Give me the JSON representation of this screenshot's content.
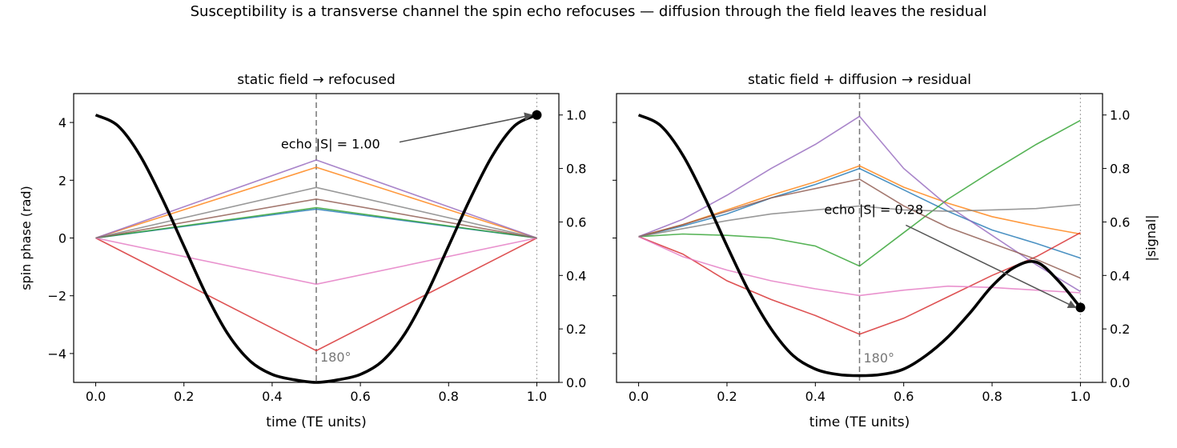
{
  "figure": {
    "suptitle": "Susceptibility is a transverse channel the spin echo refocuses — diffusion through the field leaves the residual"
  },
  "chart_data": [
    {
      "type": "line",
      "title": "static field  →  refocused",
      "xlabel": "time  (TE units)",
      "ylabel": "spin phase (rad)",
      "y2label": "",
      "xlim": [
        -0.05,
        1.05
      ],
      "ylim": [
        -5.0,
        5.0
      ],
      "y2lim": [
        0.0,
        1.08
      ],
      "xticks": [
        "0.0",
        "0.2",
        "0.4",
        "0.6",
        "0.8",
        "1.0"
      ],
      "yticks": [
        "−4",
        "−2",
        "0",
        "2",
        "4"
      ],
      "y2ticks": [
        "0.0",
        "0.2",
        "0.4",
        "0.6",
        "0.8",
        "1.0"
      ],
      "grid": false,
      "refocus_line": {
        "x": 0.5,
        "label": "180°"
      },
      "echo_line": {
        "x": 1.0
      },
      "phase_series": [
        {
          "color": "#1f77b4",
          "x": [
            0,
            0.5,
            1.0
          ],
          "y": [
            0,
            1.0,
            0
          ]
        },
        {
          "color": "#ff7f0e",
          "x": [
            0,
            0.5,
            1.0
          ],
          "y": [
            0,
            2.45,
            0
          ]
        },
        {
          "color": "#2ca02c",
          "x": [
            0,
            0.5,
            1.0
          ],
          "y": [
            0,
            1.05,
            0
          ]
        },
        {
          "color": "#d62728",
          "x": [
            0,
            0.5,
            1.0
          ],
          "y": [
            0,
            -3.9,
            0
          ]
        },
        {
          "color": "#9467bd",
          "x": [
            0,
            0.5,
            1.0
          ],
          "y": [
            0,
            2.7,
            0
          ]
        },
        {
          "color": "#8c564b",
          "x": [
            0,
            0.5,
            1.0
          ],
          "y": [
            0,
            1.35,
            0
          ]
        },
        {
          "color": "#e377c2",
          "x": [
            0,
            0.5,
            1.0
          ],
          "y": [
            0,
            -1.6,
            0
          ]
        },
        {
          "color": "#7f7f7f",
          "x": [
            0,
            0.5,
            1.0
          ],
          "y": [
            0,
            1.75,
            0
          ]
        }
      ],
      "signal": {
        "color": "#000000",
        "x": [
          0,
          0.05,
          0.1,
          0.15,
          0.2,
          0.25,
          0.3,
          0.35,
          0.4,
          0.45,
          0.5,
          0.55,
          0.6,
          0.65,
          0.7,
          0.75,
          0.8,
          0.85,
          0.9,
          0.95,
          1.0
        ],
        "y": [
          1.0,
          0.96,
          0.85,
          0.69,
          0.51,
          0.33,
          0.18,
          0.08,
          0.03,
          0.01,
          0.0,
          0.01,
          0.03,
          0.08,
          0.18,
          0.33,
          0.51,
          0.69,
          0.85,
          0.96,
          1.0
        ]
      },
      "echo_marker": {
        "x": 1.0,
        "y": 1.0
      },
      "annotation": {
        "text": "echo |S| = 1.00",
        "text_x": 0.42,
        "text_y": 3.1
      }
    },
    {
      "type": "line",
      "title": "static field + diffusion  →  residual",
      "xlabel": "time  (TE units)",
      "ylabel": "",
      "y2label": "|signal|",
      "xlim": [
        -0.05,
        1.05
      ],
      "ylim": [
        0.0,
        1.08
      ],
      "y2lim": [
        0.0,
        1.08
      ],
      "xticks": [
        "0.0",
        "0.2",
        "0.4",
        "0.6",
        "0.8",
        "1.0"
      ],
      "yticks": [],
      "y2ticks": [
        "0.0",
        "0.2",
        "0.4",
        "0.6",
        "0.8",
        "1.0"
      ],
      "grid": false,
      "refocus_line": {
        "x": 0.5,
        "label": "180°"
      },
      "echo_line": {
        "x": 1.0
      },
      "phase_series": [
        {
          "color": "#1f77b4",
          "x": [
            0,
            0.1,
            0.2,
            0.3,
            0.4,
            0.5,
            0.6,
            0.7,
            0.8,
            0.9,
            1.0
          ],
          "y": [
            0.545,
            0.585,
            0.63,
            0.69,
            0.74,
            0.8,
            0.72,
            0.64,
            0.57,
            0.52,
            0.465
          ]
        },
        {
          "color": "#ff7f0e",
          "x": [
            0,
            0.1,
            0.2,
            0.3,
            0.4,
            0.5,
            0.6,
            0.7,
            0.8,
            0.9,
            1.0
          ],
          "y": [
            0.545,
            0.59,
            0.645,
            0.7,
            0.75,
            0.81,
            0.73,
            0.67,
            0.62,
            0.585,
            0.555
          ]
        },
        {
          "color": "#2ca02c",
          "x": [
            0,
            0.1,
            0.2,
            0.3,
            0.4,
            0.5,
            0.6,
            0.7,
            0.8,
            0.9,
            1.0
          ],
          "y": [
            0.545,
            0.555,
            0.55,
            0.54,
            0.51,
            0.435,
            0.56,
            0.685,
            0.79,
            0.89,
            0.98
          ]
        },
        {
          "color": "#d62728",
          "x": [
            0,
            0.1,
            0.2,
            0.3,
            0.4,
            0.5,
            0.6,
            0.7,
            0.8,
            0.9,
            1.0
          ],
          "y": [
            0.545,
            0.48,
            0.38,
            0.31,
            0.25,
            0.18,
            0.24,
            0.32,
            0.4,
            0.47,
            0.56
          ]
        },
        {
          "color": "#9467bd",
          "x": [
            0,
            0.1,
            0.2,
            0.3,
            0.4,
            0.5,
            0.6,
            0.7,
            0.8,
            0.9,
            1.0
          ],
          "y": [
            0.545,
            0.61,
            0.7,
            0.8,
            0.89,
            0.995,
            0.8,
            0.66,
            0.55,
            0.44,
            0.34
          ]
        },
        {
          "color": "#8c564b",
          "x": [
            0,
            0.1,
            0.2,
            0.3,
            0.4,
            0.5,
            0.6,
            0.7,
            0.8,
            0.9,
            1.0
          ],
          "y": [
            0.545,
            0.59,
            0.64,
            0.69,
            0.725,
            0.76,
            0.66,
            0.58,
            0.52,
            0.46,
            0.39
          ]
        },
        {
          "color": "#e377c2",
          "x": [
            0,
            0.1,
            0.2,
            0.3,
            0.4,
            0.5,
            0.6,
            0.7,
            0.8,
            0.9,
            1.0
          ],
          "y": [
            0.545,
            0.47,
            0.42,
            0.38,
            0.35,
            0.325,
            0.345,
            0.36,
            0.355,
            0.345,
            0.335
          ]
        },
        {
          "color": "#7f7f7f",
          "x": [
            0,
            0.1,
            0.2,
            0.3,
            0.4,
            0.5,
            0.6,
            0.7,
            0.8,
            0.9,
            1.0
          ],
          "y": [
            0.545,
            0.575,
            0.605,
            0.63,
            0.645,
            0.66,
            0.645,
            0.64,
            0.645,
            0.65,
            0.665
          ]
        }
      ],
      "signal": {
        "color": "#000000",
        "x": [
          0,
          0.05,
          0.1,
          0.15,
          0.2,
          0.25,
          0.3,
          0.35,
          0.4,
          0.45,
          0.5,
          0.55,
          0.6,
          0.65,
          0.7,
          0.75,
          0.8,
          0.85,
          0.9,
          0.95,
          1.0
        ],
        "y": [
          1.0,
          0.96,
          0.85,
          0.69,
          0.51,
          0.34,
          0.2,
          0.1,
          0.05,
          0.03,
          0.025,
          0.03,
          0.05,
          0.1,
          0.17,
          0.26,
          0.36,
          0.43,
          0.45,
          0.38,
          0.28
        ]
      },
      "echo_marker": {
        "x": 1.0,
        "y": 0.28
      },
      "annotation": {
        "text": "echo |S| = 0.28",
        "text_x": 0.42,
        "text_y": 0.63
      }
    }
  ]
}
